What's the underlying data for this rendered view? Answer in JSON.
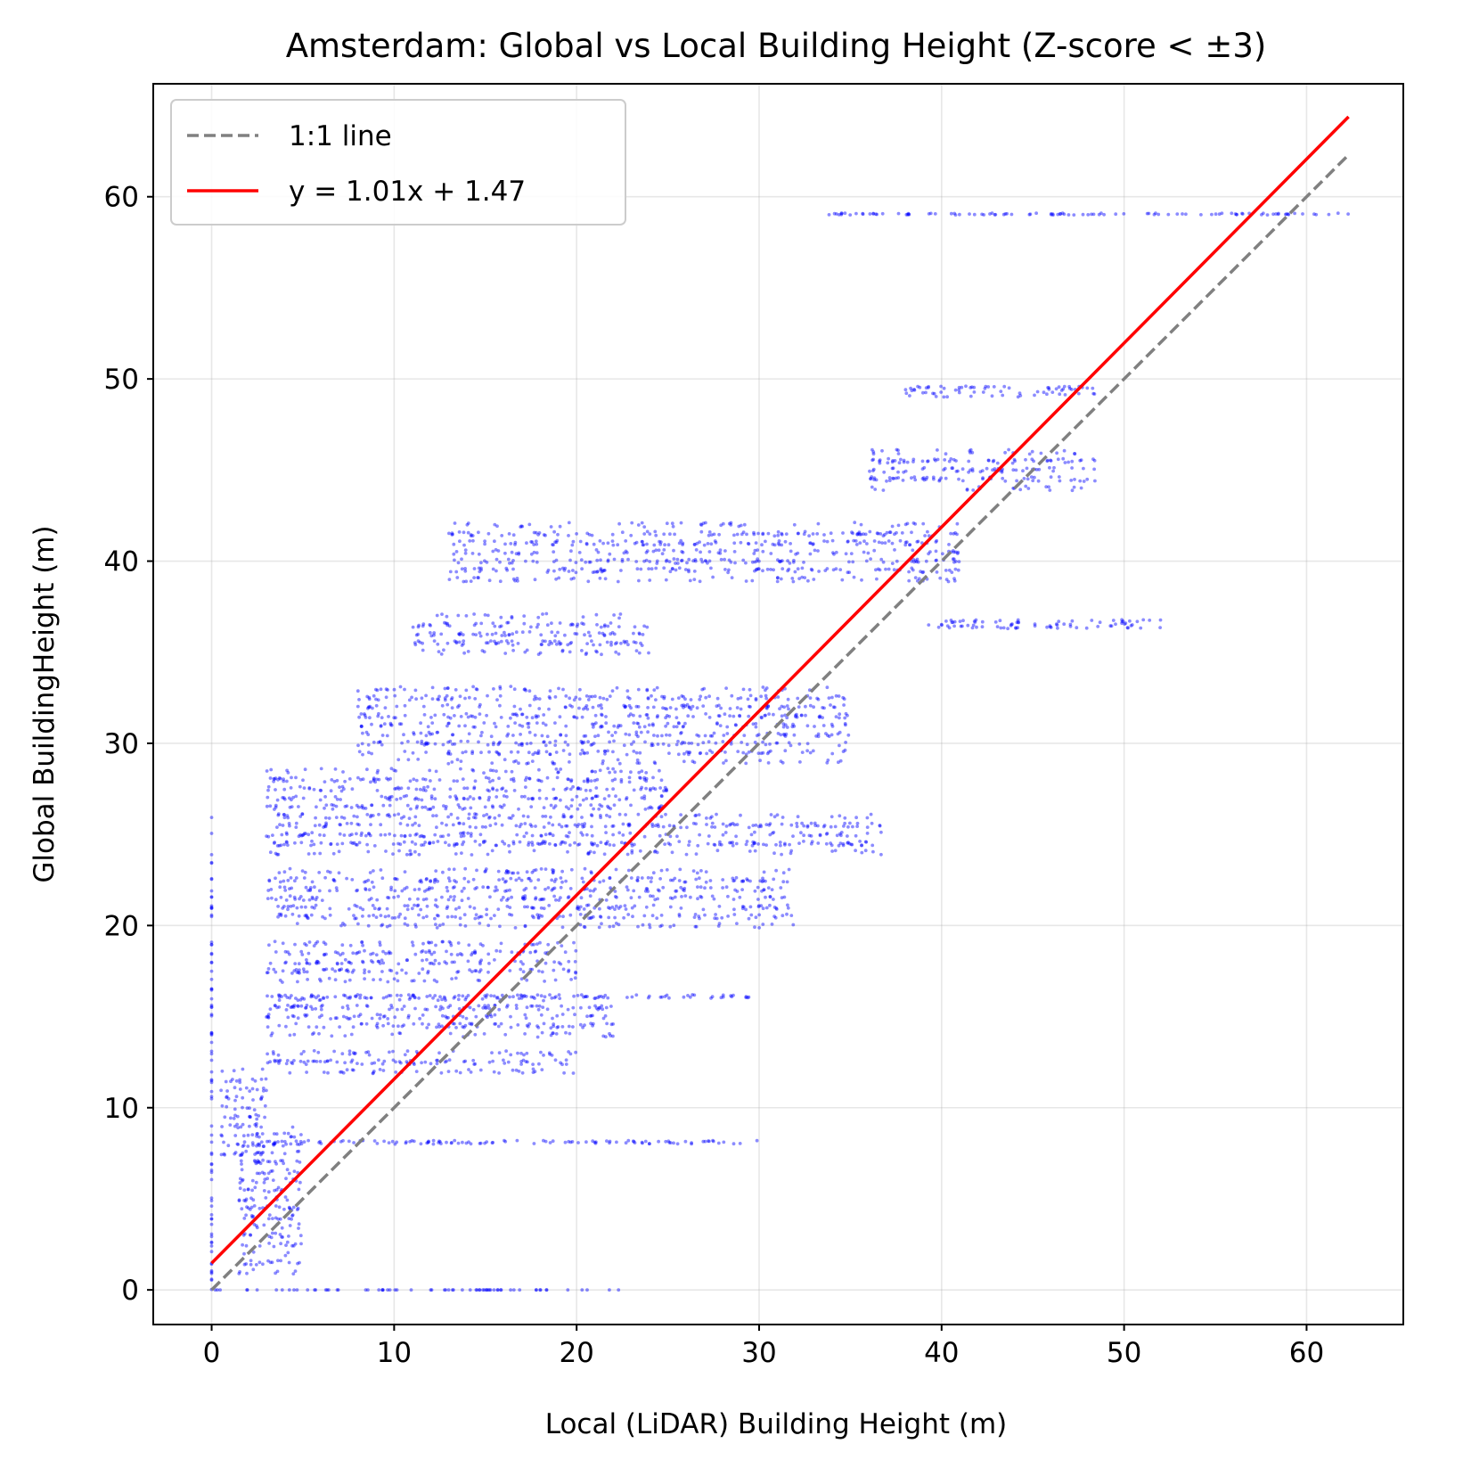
{
  "chart_data": {
    "type": "scatter",
    "title": "Amsterdam: Global vs Local Building Height (Z-score < ±3)",
    "xlabel": "Local (LiDAR) Building Height (m)",
    "ylabel": "Global BuildingHeight (m)",
    "xlim": [
      -3.2,
      65.3
    ],
    "ylim": [
      -1.9,
      66.2
    ],
    "xticks": [
      0,
      10,
      20,
      30,
      40,
      50,
      60
    ],
    "yticks": [
      0,
      10,
      20,
      30,
      40,
      50,
      60
    ],
    "grid": true,
    "legend_position": "top-left",
    "series": [
      {
        "name": "1:1 line",
        "kind": "line",
        "style": "dashed",
        "color": "#808080",
        "x": [
          0,
          62.3
        ],
        "y": [
          0,
          62.3
        ]
      },
      {
        "name": "y = 1.01x + 1.47",
        "kind": "line",
        "style": "solid",
        "color": "#ff0000",
        "slope": 1.01,
        "intercept": 1.47,
        "x": [
          0,
          62.3
        ],
        "y": [
          1.47,
          64.39
        ]
      },
      {
        "kind": "scatter",
        "color": "#0000ff",
        "clusters": [
          {
            "x": [
              0,
              22.4
            ],
            "y": [
              0,
              0
            ]
          },
          {
            "x": [
              0,
              0
            ],
            "y": [
              0,
              26.2
            ]
          },
          {
            "x": [
              0.5,
              3
            ],
            "y": [
              7,
              12
            ]
          },
          {
            "x": [
              1.5,
              5
            ],
            "y": [
              1,
              9
            ]
          },
          {
            "x": [
              3,
              30
            ],
            "y": [
              8,
              8.2
            ]
          },
          {
            "x": [
              3,
              20
            ],
            "y": [
              12,
              13
            ]
          },
          {
            "x": [
              3,
              22
            ],
            "y": [
              14,
              16
            ]
          },
          {
            "x": [
              3,
              30
            ],
            "y": [
              16,
              16.2
            ]
          },
          {
            "x": [
              3,
              20
            ],
            "y": [
              17,
              19
            ]
          },
          {
            "x": [
              3,
              32
            ],
            "y": [
              20,
              23
            ]
          },
          {
            "x": [
              3,
              37
            ],
            "y": [
              24,
              26
            ]
          },
          {
            "x": [
              3,
              25
            ],
            "y": [
              26,
              28.5
            ]
          },
          {
            "x": [
              8,
              35
            ],
            "y": [
              29,
              33
            ]
          },
          {
            "x": [
              11,
              24
            ],
            "y": [
              35,
              37
            ]
          },
          {
            "x": [
              13,
              41
            ],
            "y": [
              39,
              42
            ]
          },
          {
            "x": [
              36,
              48.5
            ],
            "y": [
              44,
              46
            ]
          },
          {
            "x": [
              39,
              52
            ],
            "y": [
              36.3,
              36.8
            ]
          },
          {
            "x": [
              38,
              48.5
            ],
            "y": [
              49,
              49.6
            ]
          },
          {
            "x": [
              33.5,
              62.3
            ],
            "y": [
              59,
              59.1
            ]
          }
        ]
      }
    ]
  }
}
